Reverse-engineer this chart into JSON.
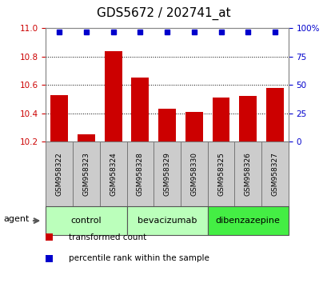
{
  "title": "GDS5672 / 202741_at",
  "samples": [
    "GSM958322",
    "GSM958323",
    "GSM958324",
    "GSM958328",
    "GSM958329",
    "GSM958330",
    "GSM958325",
    "GSM958326",
    "GSM958327"
  ],
  "bar_values": [
    10.53,
    10.25,
    10.84,
    10.65,
    10.43,
    10.41,
    10.51,
    10.52,
    10.58
  ],
  "percentile_values": [
    97,
    97,
    97,
    97,
    97,
    97,
    97,
    97,
    97
  ],
  "bar_color": "#cc0000",
  "dot_color": "#0000cc",
  "ylim_left": [
    10.2,
    11.0
  ],
  "ylim_right": [
    0,
    100
  ],
  "yticks_left": [
    10.2,
    10.4,
    10.6,
    10.8,
    11.0
  ],
  "yticks_right": [
    0,
    25,
    50,
    75,
    100
  ],
  "ytick_labels_right": [
    "0",
    "25",
    "50",
    "75",
    "100%"
  ],
  "groups": [
    {
      "label": "control",
      "start": 0,
      "end": 2,
      "color": "#bbffbb"
    },
    {
      "label": "bevacizumab",
      "start": 3,
      "end": 5,
      "color": "#bbffbb"
    },
    {
      "label": "dibenzazepine",
      "start": 6,
      "end": 8,
      "color": "#44ee44"
    }
  ],
  "agent_label": "agent",
  "legend_items": [
    {
      "label": "transformed count",
      "color": "#cc0000"
    },
    {
      "label": "percentile rank within the sample",
      "color": "#0000cc"
    }
  ],
  "bar_width": 0.65,
  "sample_box_color": "#cccccc",
  "left_tick_color": "#cc0000",
  "right_tick_color": "#0000cc",
  "figsize": [
    4.1,
    3.54
  ],
  "dpi": 100
}
